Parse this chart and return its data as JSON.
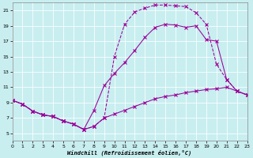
{
  "bg_color": "#c8eef0",
  "line_color": "#990099",
  "xlim": [
    0,
    23
  ],
  "ylim": [
    4,
    22
  ],
  "xticks": [
    0,
    1,
    2,
    3,
    4,
    5,
    6,
    7,
    8,
    9,
    10,
    11,
    12,
    13,
    14,
    15,
    16,
    17,
    18,
    19,
    20,
    21,
    22,
    23
  ],
  "yticks": [
    5,
    7,
    9,
    11,
    13,
    15,
    17,
    19,
    21
  ],
  "xlabel": "Windchill (Refroidissement éolien,°C)",
  "lines": [
    {
      "x": [
        0,
        1,
        2,
        3,
        4,
        5,
        6,
        7,
        8,
        9,
        10,
        11,
        12,
        13,
        14,
        15,
        16,
        17,
        18,
        19,
        20,
        21,
        22,
        23
      ],
      "y": [
        9.3,
        8.8,
        7.9,
        7.4,
        7.2,
        6.6,
        6.2,
        5.5,
        8.0,
        11.2,
        12.8,
        14.2,
        15.8,
        17.5,
        18.8,
        19.2,
        19.1,
        18.8,
        19.0,
        17.2,
        17.0,
        12.0,
        10.5,
        10.0
      ],
      "linestyle": "-"
    },
    {
      "x": [
        0,
        1,
        2,
        3,
        4,
        5,
        6,
        7,
        8,
        9,
        10,
        11,
        12,
        13,
        14,
        15,
        16,
        17,
        18,
        19,
        20,
        21,
        22,
        23
      ],
      "y": [
        9.3,
        8.8,
        7.9,
        7.4,
        7.2,
        6.6,
        6.2,
        5.5,
        5.9,
        7.0,
        15.0,
        19.2,
        20.8,
        21.3,
        21.7,
        21.7,
        21.6,
        21.5,
        20.7,
        19.2,
        14.0,
        12.0,
        10.5,
        10.0
      ],
      "linestyle": "--"
    },
    {
      "x": [
        0,
        1,
        2,
        3,
        4,
        5,
        6,
        7,
        8,
        9,
        10,
        11,
        12,
        13,
        14,
        15,
        16,
        17,
        18,
        19,
        20,
        21,
        22,
        23
      ],
      "y": [
        9.3,
        8.8,
        7.9,
        7.4,
        7.2,
        6.6,
        6.2,
        5.5,
        5.9,
        7.0,
        7.5,
        8.0,
        8.5,
        9.0,
        9.5,
        9.8,
        10.0,
        10.3,
        10.5,
        10.7,
        10.8,
        11.0,
        10.5,
        10.0
      ],
      "linestyle": "-"
    }
  ]
}
